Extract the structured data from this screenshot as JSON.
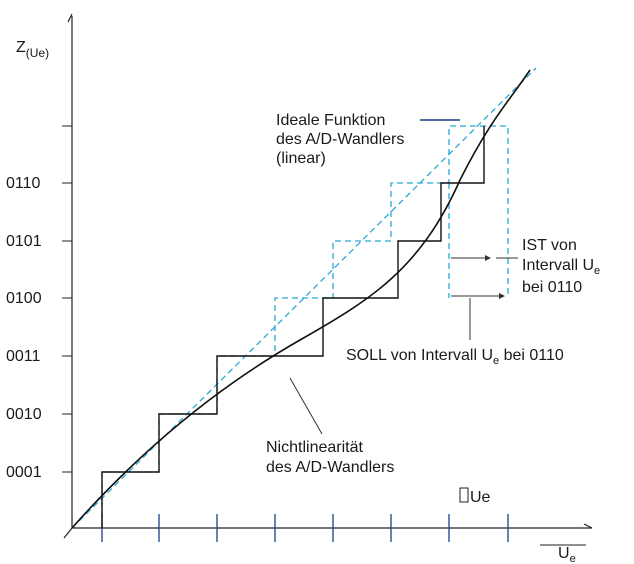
{
  "axes": {
    "y_label_main": "Z",
    "y_label_sub": "(Ue)",
    "x_label_main": "U",
    "x_label_sub": "e"
  },
  "y_ticks": [
    "0001",
    "0010",
    "0011",
    "0100",
    "0101",
    "0110"
  ],
  "annotations": {
    "ideal_line1": "Ideale Funktion",
    "ideal_line2": "des A/D-Wandlers",
    "ideal_line3": "(linear)",
    "ist_line1": "IST von",
    "ist_line2_main": "Intervall U",
    "ist_line2_sub": "e",
    "ist_line3": "bei 0110",
    "soll_main": "SOLL von Intervall U",
    "soll_sub": "e",
    "soll_rest": " bei 0110",
    "nonlin_line1": "Nichtlinearität",
    "nonlin_line2": "des A/D-Wandlers",
    "delta_symbol": "",
    "delta_label": "Ue"
  },
  "colors": {
    "ideal_dashed": "#2aa8d8",
    "legend_line": "#1f3c88",
    "tick_marks": "#1f3c88",
    "actual": "#111111"
  }
}
